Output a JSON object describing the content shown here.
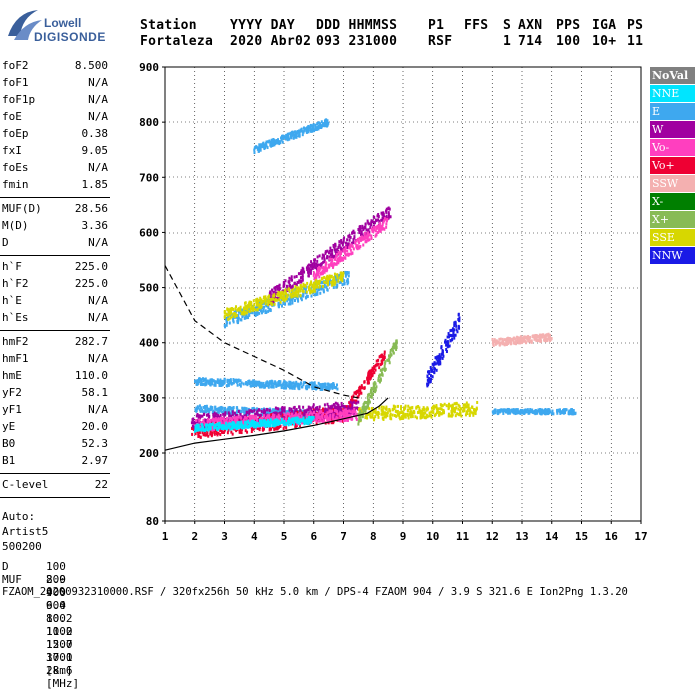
{
  "logo": {
    "line1": "Lowell",
    "line2": "DIGISONDE"
  },
  "header": {
    "row1": [
      "Station",
      "YYYY DAY",
      "DDD HHMMSS",
      "P1",
      "FFS",
      "S",
      "AXN",
      "PPS",
      "IGA",
      "PS"
    ],
    "row2": [
      "Fortaleza",
      "2020 Abr02",
      "093 231000",
      "RSF",
      "",
      "1",
      "714",
      "100",
      "10+",
      "11"
    ]
  },
  "parameters": {
    "group1": [
      {
        "name": "foF2",
        "value": "8.500"
      },
      {
        "name": "foF1",
        "value": "N/A"
      },
      {
        "name": "foF1p",
        "value": "N/A"
      },
      {
        "name": "foE",
        "value": "N/A"
      },
      {
        "name": "foEp",
        "value": "0.38"
      },
      {
        "name": "fxI",
        "value": "9.05"
      },
      {
        "name": "foEs",
        "value": "N/A"
      },
      {
        "name": "fmin",
        "value": "1.85"
      }
    ],
    "group2": [
      {
        "name": "MUF(D)",
        "value": "28.56"
      },
      {
        "name": "M(D)",
        "value": "3.36"
      },
      {
        "name": "D",
        "value": "N/A"
      }
    ],
    "group3": [
      {
        "name": "h`F",
        "value": "225.0"
      },
      {
        "name": "h`F2",
        "value": "225.0"
      },
      {
        "name": "h`E",
        "value": "N/A"
      },
      {
        "name": "h`Es",
        "value": "N/A"
      }
    ],
    "group4": [
      {
        "name": "hmF2",
        "value": "282.7"
      },
      {
        "name": "hmF1",
        "value": "N/A"
      },
      {
        "name": "hmE",
        "value": "110.0"
      },
      {
        "name": "yF2",
        "value": "58.1"
      },
      {
        "name": "yF1",
        "value": "N/A"
      },
      {
        "name": "yE",
        "value": "20.0"
      },
      {
        "name": "B0",
        "value": "52.3"
      },
      {
        "name": "B1",
        "value": "2.97"
      }
    ],
    "group5": [
      {
        "name": "C-level",
        "value": "22"
      }
    ]
  },
  "auto": {
    "line1": "Auto:",
    "line2": "Artist5",
    "line3": "500200"
  },
  "legend": [
    {
      "label": "NoVal",
      "color": "#808080"
    },
    {
      "label": "NNE",
      "color": "#00e5ff"
    },
    {
      "label": "E",
      "color": "#3ea8ef"
    },
    {
      "label": "W",
      "color": "#a000a0"
    },
    {
      "label": "Vo-",
      "color": "#ff3fbf"
    },
    {
      "label": "Vo+",
      "color": "#ee0033"
    },
    {
      "label": "SSW",
      "color": "#f4b0b0"
    },
    {
      "label": "X-",
      "color": "#007f00"
    },
    {
      "label": "X+",
      "color": "#88bb55"
    },
    {
      "label": "SSE",
      "color": "#d7d700"
    },
    {
      "label": "NNW",
      "color": "#1a1ae6"
    }
  ],
  "footer": {
    "row1_label": "D",
    "row1_values": "100  200  400  600  800 1000 1500 3000 [km]",
    "row2_label": "MUF",
    "row2_values": "8.9  9.0  9.4 10.2 11.2 12.7 17.1 28.6 [MHz]",
    "file_line": "FZAOM_20200932310000.RSF / 320fx256h 50 kHz 5.0 km / DPS-4 FZAOM 904 / 3.9 S 321.6 E   Ion2Png 1.3.20"
  },
  "chart_data": {
    "type": "scatter",
    "x_ticks": [
      "1",
      "2",
      "3",
      "4",
      "5",
      "6",
      "7",
      "8",
      "9",
      "10",
      "11",
      "12",
      "13",
      "14",
      "15",
      "16",
      "17"
    ],
    "y_ticks": [
      "80",
      "200",
      "300",
      "400",
      "500",
      "600",
      "700",
      "800",
      "900"
    ],
    "xlim": [
      1,
      17
    ],
    "ylim": [
      80,
      900
    ],
    "grid": true,
    "legend_position": "right",
    "series": [
      {
        "name": "E",
        "clusters": [
          {
            "x": [
              2.0,
              6.0
            ],
            "y": [
              280,
              270
            ],
            "spread": 6
          },
          {
            "x": [
              2.0,
              6.8
            ],
            "y": [
              330,
              320
            ],
            "spread": 6
          },
          {
            "x": [
              3.0,
              7.2
            ],
            "y": [
              440,
              520
            ],
            "spread": 12
          },
          {
            "x": [
              4.0,
              6.5
            ],
            "y": [
              750,
              800
            ],
            "spread": 6
          },
          {
            "x": [
              12.0,
              14.8
            ],
            "y": [
              275,
              275
            ],
            "spread": 4
          }
        ]
      },
      {
        "name": "Vo+",
        "clusters": [
          {
            "x": [
              1.9,
              7.0
            ],
            "y": [
              240,
              270
            ],
            "spread": 14
          },
          {
            "x": [
              7.0,
              8.4
            ],
            "y": [
              270,
              380
            ],
            "spread": 10
          }
        ]
      },
      {
        "name": "W",
        "clusters": [
          {
            "x": [
              1.9,
              7.5
            ],
            "y": [
              255,
              280
            ],
            "spread": 14
          },
          {
            "x": [
              4.5,
              8.6
            ],
            "y": [
              480,
              640
            ],
            "spread": 12
          }
        ]
      },
      {
        "name": "Vo-",
        "clusters": [
          {
            "x": [
              2.0,
              7.5
            ],
            "y": [
              250,
              270
            ],
            "spread": 10
          },
          {
            "x": [
              6.0,
              8.5
            ],
            "y": [
              520,
              620
            ],
            "spread": 10
          }
        ]
      },
      {
        "name": "SSE",
        "clusters": [
          {
            "x": [
              7.5,
              11.5
            ],
            "y": [
              270,
              280
            ],
            "spread": 12
          },
          {
            "x": [
              3.0,
              7.0
            ],
            "y": [
              450,
              520
            ],
            "spread": 10
          }
        ]
      },
      {
        "name": "NNW",
        "clusters": [
          {
            "x": [
              9.8,
              10.9
            ],
            "y": [
              330,
              440
            ],
            "spread": 14
          }
        ]
      },
      {
        "name": "X+",
        "clusters": [
          {
            "x": [
              7.5,
              8.8
            ],
            "y": [
              260,
              400
            ],
            "spread": 10
          }
        ]
      },
      {
        "name": "SSW",
        "clusters": [
          {
            "x": [
              12.0,
              14.0
            ],
            "y": [
              400,
              410
            ],
            "spread": 6
          }
        ]
      },
      {
        "name": "NNE",
        "clusters": [
          {
            "x": [
              2.0,
              6.0
            ],
            "y": [
              245,
              260
            ],
            "spread": 6
          }
        ]
      }
    ],
    "profile_curves": [
      {
        "name": "dashed",
        "x": [
          1.0,
          2.0,
          3.0,
          4.0,
          5.0,
          6.0,
          7.0,
          7.5
        ],
        "y": [
          540,
          440,
          400,
          375,
          350,
          320,
          305,
          300
        ]
      },
      {
        "name": "solid",
        "x": [
          1.0,
          2.0,
          3.0,
          4.0,
          5.0,
          6.0,
          7.0,
          7.8,
          8.2,
          8.5
        ],
        "y": [
          205,
          218,
          225,
          232,
          240,
          250,
          262,
          272,
          285,
          300
        ]
      }
    ]
  }
}
